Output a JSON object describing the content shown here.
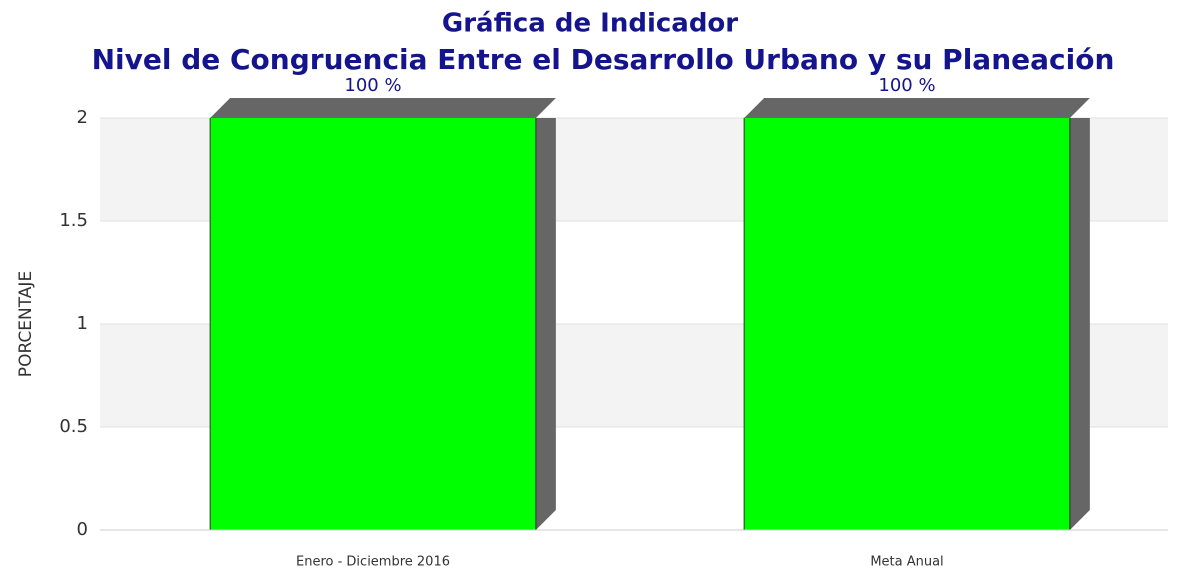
{
  "chart_data": {
    "type": "bar",
    "title": "Gráfica de Indicador",
    "subtitle": "Nivel de Congruencia Entre el Desarrollo Urbano y su Planeación",
    "y_label": "PORCENTAJE",
    "categories": [
      "Enero - Diciembre 2016",
      "Meta Anual"
    ],
    "values": [
      100,
      100
    ],
    "value_labels": [
      "100 %",
      "100 %"
    ],
    "color": "#00ff00",
    "ylim": [
      0,
      2
    ],
    "yticks": [
      0,
      0.5,
      1,
      1.5,
      2
    ],
    "grid": true
  }
}
